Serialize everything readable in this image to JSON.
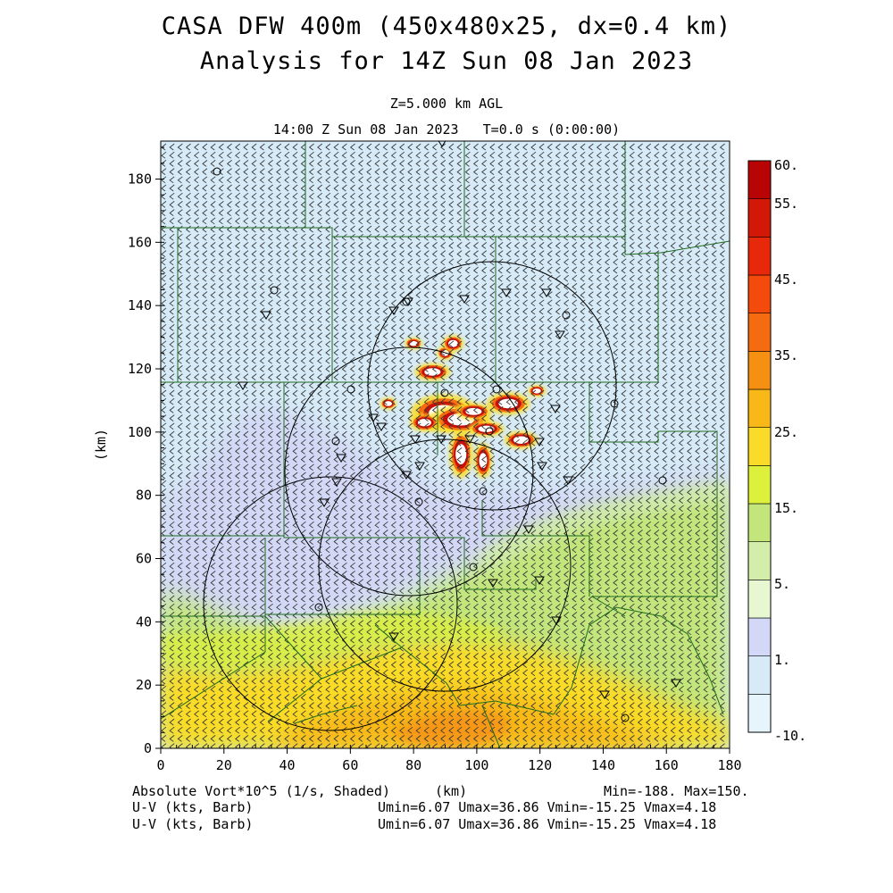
{
  "header": {
    "title_line1": "CASA DFW 400m (450x480x25, dx=0.4 km)",
    "title_line2": "Analysis for 14Z Sun 08 Jan 2023",
    "level": "Z=5.000 km AGL",
    "time": "14:00 Z Sun 08 Jan 2023   T=0.0 s (0:00:00)"
  },
  "footer": {
    "field1": "Absolute Vort*10^5 (1/s, Shaded)",
    "xunit": "(km)",
    "minmax": "Min=-188. Max=150.",
    "field2": "U-V (kts, Barb)",
    "field2_stats": "Umin=6.07 Umax=36.86 Vmin=-15.25 Vmax=4.18",
    "field3": "U-V (kts, Barb)",
    "field3_stats": "Umin=6.07 Umax=36.86 Vmin=-15.25 Vmax=4.18"
  },
  "chart_data": {
    "type": "heatmap",
    "title": "CASA DFW 400m (450x480x25, dx=0.4 km)",
    "subtitle": "Analysis for 14Z Sun 08 Jan 2023",
    "xlabel": "(km)",
    "ylabel": "(km)",
    "xlim": [
      0,
      180
    ],
    "ylim": [
      0,
      192
    ],
    "xticks": [
      0,
      20,
      40,
      60,
      80,
      100,
      120,
      140,
      160,
      180
    ],
    "yticks": [
      0,
      20,
      40,
      60,
      80,
      100,
      120,
      140,
      160,
      180
    ],
    "variable": "Absolute Vort*10^5 (1/s, Shaded)",
    "overlay": "U-V (kts, Barb)",
    "min": -188,
    "max": 150,
    "colorbar": {
      "levels": [
        -10,
        1,
        5,
        15,
        25,
        35,
        45,
        55,
        60
      ],
      "tick_labels": [
        "60.",
        "55.",
        "45.",
        "35.",
        "25.",
        "15.",
        "5.",
        "1.",
        "-10."
      ],
      "bins": [
        {
          "lo": -10,
          "hi": -5,
          "color": "#e6f5fb"
        },
        {
          "lo": -5,
          "hi": 0,
          "color": "#d6ebf7"
        },
        {
          "lo": 0,
          "hi": 2,
          "color": "#d2d8f6"
        },
        {
          "lo": 2,
          "hi": 5,
          "color": "#e6f7d2"
        },
        {
          "lo": 5,
          "hi": 10,
          "color": "#d2eeaa"
        },
        {
          "lo": 10,
          "hi": 15,
          "color": "#c2e67c"
        },
        {
          "lo": 15,
          "hi": 20,
          "color": "#dcf03c"
        },
        {
          "lo": 20,
          "hi": 25,
          "color": "#fadc28"
        },
        {
          "lo": 25,
          "hi": 30,
          "color": "#f8b818"
        },
        {
          "lo": 30,
          "hi": 35,
          "color": "#f69012"
        },
        {
          "lo": 35,
          "hi": 40,
          "color": "#f56c10"
        },
        {
          "lo": 40,
          "hi": 45,
          "color": "#f44a0c"
        },
        {
          "lo": 45,
          "hi": 50,
          "color": "#e8280a"
        },
        {
          "lo": 50,
          "hi": 55,
          "color": "#d41808"
        },
        {
          "lo": 55,
          "hi": 60,
          "color": "#b80404"
        }
      ]
    },
    "regions": [
      {
        "name": "background",
        "value_range": [
          -5,
          0
        ],
        "color": "#d6ebf7"
      },
      {
        "name": "purple-band",
        "value_range": [
          0,
          2
        ],
        "color": "#d2d8f6"
      },
      {
        "name": "south-green",
        "value_range": [
          5,
          15
        ],
        "color": "#c2e67c"
      },
      {
        "name": "south-yellow",
        "value_range": [
          15,
          25
        ],
        "color": "#fadc28"
      },
      {
        "name": "south-orange",
        "value_range": [
          25,
          35
        ],
        "color": "#f8b818"
      },
      {
        "name": "storm-core",
        "value_range": [
          35,
          150
        ],
        "color": "#e8280a"
      }
    ],
    "radar_circles": [
      {
        "cx": 97.5,
        "cy": 113,
        "r": 39.5
      },
      {
        "cx": 78,
        "cy": 90,
        "r": 39.5
      },
      {
        "cx": 88,
        "cy": 61,
        "r": 40
      },
      {
        "cx": 49,
        "cy": 49.5,
        "r": 40.5
      }
    ],
    "storm_cells": [
      {
        "x": 89.5,
        "y": 106,
        "rx": 5.5,
        "ry": 3.2
      },
      {
        "x": 95,
        "y": 104,
        "rx": 5,
        "ry": 2.4
      },
      {
        "x": 110,
        "y": 109,
        "rx": 3.6,
        "ry": 1.9
      },
      {
        "x": 114,
        "y": 97.5,
        "rx": 2.8,
        "ry": 1.5
      },
      {
        "x": 83.5,
        "y": 103,
        "rx": 2.5,
        "ry": 1.5
      },
      {
        "x": 72,
        "y": 109,
        "rx": 1.4,
        "ry": 1
      },
      {
        "x": 86,
        "y": 119,
        "rx": 3,
        "ry": 1.5
      },
      {
        "x": 90,
        "y": 125,
        "rx": 1.4,
        "ry": 1.2
      },
      {
        "x": 92.5,
        "y": 128,
        "rx": 1.8,
        "ry": 1.4
      },
      {
        "x": 103,
        "y": 101,
        "rx": 3,
        "ry": 1.3
      },
      {
        "x": 95,
        "y": 93,
        "rx": 2,
        "ry": 4
      },
      {
        "x": 102,
        "y": 91,
        "rx": 1.5,
        "ry": 3
      },
      {
        "x": 119,
        "y": 113,
        "rx": 1.5,
        "ry": 1
      },
      {
        "x": 80,
        "y": 128,
        "rx": 1.5,
        "ry": 1
      },
      {
        "x": 99,
        "y": 106.5,
        "rx": 3,
        "ry": 1.4
      }
    ],
    "grid": false,
    "legend": "right"
  }
}
